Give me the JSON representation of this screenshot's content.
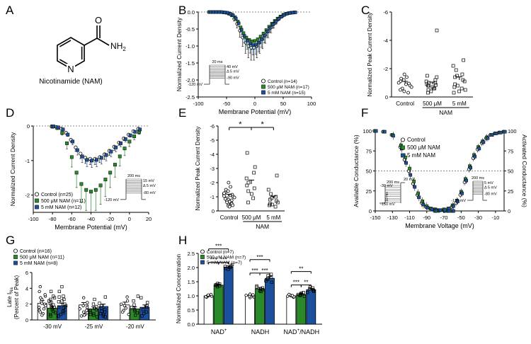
{
  "colors": {
    "control": "#ffffff",
    "nam500": "#2a8a2a",
    "nam5": "#1c4f9c",
    "axis": "#000000",
    "proto": "#555555"
  },
  "panel_labels": [
    "A",
    "B",
    "C",
    "D",
    "E",
    "F",
    "G",
    "H"
  ],
  "panelA": {
    "caption": "Nicotinamide (NAM)",
    "atom_O": "O",
    "atom_N": "N",
    "atom_NH2": "NH",
    "atom_sub2": "2"
  },
  "chart_data": [
    {
      "id": "B",
      "type": "line",
      "xlabel": "Membrane Potential (mV)",
      "ylabel": "Normalized Current Density",
      "xlim": [
        -100,
        100
      ],
      "ylim": [
        -2.5,
        0
      ],
      "xticks": [
        "-100",
        "-50",
        "0",
        "50",
        "100"
      ],
      "yticks": [
        "0.0",
        "-0.5",
        "-1.0",
        "-1.5",
        "-2.0",
        "-2.5"
      ],
      "x": [
        -80,
        -75,
        -70,
        -65,
        -60,
        -55,
        -50,
        -45,
        -40,
        -35,
        -30,
        -25,
        -20,
        -15,
        -10,
        -5,
        0,
        5,
        10,
        15,
        20,
        25,
        30,
        35,
        40,
        45,
        50,
        55,
        60,
        65,
        70
      ],
      "series": [
        {
          "name": "Control (n=14)",
          "values": [
            0,
            0,
            0,
            0,
            0,
            -0.01,
            -0.02,
            -0.05,
            -0.1,
            -0.2,
            -0.35,
            -0.55,
            -0.75,
            -0.9,
            -1.0,
            -1.05,
            -1.05,
            -1.0,
            -0.9,
            -0.8,
            -0.68,
            -0.56,
            -0.45,
            -0.35,
            -0.26,
            -0.18,
            -0.12,
            -0.07,
            -0.04,
            -0.02,
            -0.01
          ]
        },
        {
          "name": "500 μM NAM (n=17)",
          "values": [
            0,
            0,
            0,
            0,
            0,
            -0.01,
            -0.02,
            -0.04,
            -0.08,
            -0.15,
            -0.28,
            -0.45,
            -0.62,
            -0.75,
            -0.82,
            -0.86,
            -0.85,
            -0.8,
            -0.72,
            -0.63,
            -0.53,
            -0.43,
            -0.34,
            -0.26,
            -0.19,
            -0.13,
            -0.08,
            -0.05,
            -0.03,
            -0.02,
            -0.01
          ]
        },
        {
          "name": "5 mM NAM (n=15)",
          "values": [
            0,
            0,
            0,
            0,
            0,
            -0.01,
            -0.02,
            -0.05,
            -0.1,
            -0.19,
            -0.33,
            -0.52,
            -0.7,
            -0.84,
            -0.93,
            -0.97,
            -0.96,
            -0.9,
            -0.8,
            -0.7,
            -0.58,
            -0.47,
            -0.37,
            -0.28,
            -0.2,
            -0.14,
            -0.09,
            -0.05,
            -0.03,
            -0.02,
            -0.01
          ]
        }
      ],
      "protocol": {
        "duration": "20 ms",
        "top": "40 mV",
        "step": "Δ 5 mV",
        "bottom": "-90 mV",
        "hold": "-120 mV"
      },
      "legend": "bottom-right"
    },
    {
      "id": "C",
      "type": "bar",
      "ylabel": "Normalized Peak Current  Density",
      "categories": [
        "Control",
        "500 μM",
        "5 mM"
      ],
      "group_label": "NAM",
      "values": [
        -0.95,
        -0.9,
        -1.2
      ],
      "errors": [
        0.15,
        0.15,
        0.22
      ],
      "ylim": [
        -6,
        0
      ],
      "yticks": [
        "0",
        "-2",
        "-4",
        "-6"
      ],
      "points": [
        [
          -1.6,
          -1.4,
          -1.3,
          -1.2,
          -1.1,
          -1.0,
          -0.95,
          -0.9,
          -0.8,
          -0.7,
          -0.6,
          -0.5,
          -0.4,
          -0.3
        ],
        [
          -1.5,
          -1.4,
          -1.2,
          -1.1,
          -1.0,
          -0.9,
          -0.85,
          -0.8,
          -0.7,
          -0.6,
          -0.5,
          -0.4,
          -0.3,
          -0.6,
          -0.8,
          -1.0,
          -4.7
        ],
        [
          -2.6,
          -2.2,
          -1.9,
          -1.6,
          -1.5,
          -1.4,
          -1.2,
          -1.1,
          -0.9,
          -0.8,
          -0.7,
          -0.6,
          -0.5,
          -0.4,
          -0.3
        ]
      ]
    },
    {
      "id": "D",
      "type": "line",
      "xlabel": "Membrane Potential (mV)",
      "ylabel": "Normalized Current Density",
      "xlim": [
        -100,
        20
      ],
      "ylim": [
        -2.5,
        0
      ],
      "xticks": [
        "-100",
        "-80",
        "-60",
        "-40",
        "-20",
        "0",
        "20"
      ],
      "yticks": [
        "0",
        "-1",
        "-2"
      ],
      "x": [
        -80,
        -75,
        -70,
        -65,
        -60,
        -55,
        -50,
        -45,
        -40,
        -35,
        -30,
        -25,
        -20,
        -15,
        -10,
        -5,
        0,
        5,
        10
      ],
      "series": [
        {
          "name": "Control (n=25)",
          "values": [
            -0.01,
            -0.03,
            -0.08,
            -0.2,
            -0.4,
            -0.62,
            -0.8,
            -0.92,
            -0.95,
            -0.95,
            -0.9,
            -0.82,
            -0.72,
            -0.6,
            -0.48,
            -0.36,
            -0.25,
            -0.15,
            -0.08
          ]
        },
        {
          "name": "500 μM NAM (n=11)",
          "values": [
            -0.02,
            -0.06,
            -0.2,
            -0.5,
            -0.9,
            -1.35,
            -1.68,
            -1.85,
            -1.9,
            -1.85,
            -1.72,
            -1.55,
            -1.35,
            -1.12,
            -0.88,
            -0.65,
            -0.45,
            -0.3,
            -0.18
          ]
        },
        {
          "name": "5 mM NAM (n=12)",
          "values": [
            -0.01,
            -0.04,
            -0.1,
            -0.25,
            -0.45,
            -0.7,
            -0.88,
            -0.98,
            -1.0,
            -0.98,
            -0.92,
            -0.84,
            -0.74,
            -0.62,
            -0.5,
            -0.38,
            -0.27,
            -0.17,
            -0.1
          ]
        }
      ],
      "protocol": {
        "duration": "200 ms",
        "top": "15 mV",
        "step": "Δ 5 mV",
        "bottom": "-80 mV",
        "hold": "-120 mV"
      },
      "legend": "bottom-left"
    },
    {
      "id": "E",
      "type": "bar",
      "ylabel": "Normalized Peak Current  Density",
      "categories": [
        "Control",
        "500 μM",
        "5 mM"
      ],
      "group_label": "NAM",
      "values": [
        -1.05,
        -1.9,
        -0.9
      ],
      "errors": [
        0.12,
        0.28,
        0.15
      ],
      "ylim": [
        -6,
        0
      ],
      "yticks": [
        "0",
        "-1",
        "-2",
        "-3",
        "-4",
        "-5",
        "-6"
      ],
      "points": [
        [
          -2.0,
          -1.7,
          -1.5,
          -1.4,
          -1.3,
          -1.2,
          -1.15,
          -1.1,
          -1.0,
          -0.95,
          -0.9,
          -0.85,
          -0.8,
          -0.75,
          -0.7,
          -0.65,
          -0.6,
          -0.55,
          -0.5,
          -0.45,
          -0.4,
          -0.35,
          -0.3,
          -1.25,
          -1.05
        ],
        [
          -4.1,
          -3.1,
          -2.7,
          -2.3,
          -2.0,
          -1.8,
          -1.6,
          -1.4,
          -1.2,
          -0.9,
          -0.6
        ],
        [
          -2.5,
          -1.5,
          -1.2,
          -1.0,
          -0.9,
          -0.8,
          -0.7,
          -0.6,
          -0.5,
          -0.45,
          -0.4,
          -0.3
        ]
      ],
      "significance": [
        [
          "Control",
          "500 μM",
          "*"
        ],
        [
          "500 μM",
          "5 mM",
          "*"
        ]
      ]
    },
    {
      "id": "F",
      "type": "line",
      "xlabel": "Membrane Voltage (mV)",
      "ylabel": "Available Conductance (%)",
      "ylabel_right": "Activated Conductance (%)",
      "xlim": [
        -150,
        0
      ],
      "ylim": [
        0,
        100
      ],
      "xticks": [
        "-150",
        "-130",
        "-110",
        "-90",
        "-70",
        "-50",
        "-30",
        "-10"
      ],
      "yticks": [
        "0",
        "25",
        "50",
        "75",
        "100"
      ],
      "x_inact": [
        -150,
        -140,
        -130,
        -120,
        -115,
        -110,
        -105,
        -100,
        -95,
        -90,
        -85,
        -80,
        -75,
        -70,
        -65,
        -60
      ],
      "x_act": [
        -80,
        -75,
        -70,
        -65,
        -60,
        -55,
        -50,
        -45,
        -40,
        -35,
        -30,
        -25,
        -20,
        -15,
        -10,
        -5,
        0
      ],
      "series": [
        {
          "name": "Control",
          "inact": [
            100,
            99,
            95,
            80,
            64,
            50,
            34,
            20,
            10,
            5,
            3,
            2,
            1,
            1,
            0,
            0
          ],
          "act": [
            0,
            0,
            1,
            2,
            5,
            10,
            20,
            36,
            52,
            66,
            77,
            85,
            91,
            95,
            97,
            98,
            99
          ]
        },
        {
          "name": "500 μM NAM",
          "inact": [
            100,
            99,
            95,
            82,
            67,
            53,
            37,
            22,
            12,
            6,
            3,
            2,
            1,
            1,
            0,
            0
          ],
          "act": [
            0,
            1,
            2,
            3,
            7,
            13,
            24,
            40,
            56,
            70,
            80,
            87,
            92,
            95,
            97,
            98,
            99
          ]
        },
        {
          "name": "5 mM NAM",
          "inact": [
            100,
            99,
            94,
            78,
            60,
            45,
            30,
            17,
            8,
            4,
            2,
            1,
            1,
            0,
            0,
            0
          ],
          "act": [
            0,
            1,
            1,
            3,
            6,
            12,
            22,
            38,
            54,
            68,
            78,
            86,
            91,
            95,
            97,
            98,
            99
          ]
        }
      ],
      "protocol_left": {
        "duration": "200 ms",
        "top": "-30 mV",
        "step": "Δ 5 mV",
        "bottom": "-150 mV",
        "after": "20 mV",
        "width": "10 ms"
      },
      "protocol_right": {
        "duration": "200 ms",
        "top": "5 mV",
        "step": "Δ 5 mV",
        "bottom": "-80 mV",
        "hold": "-120 mV"
      }
    },
    {
      "id": "G",
      "type": "bar",
      "ylabel": "Late Iₙₐ (Percent of Peak)",
      "ylabel_main": "Late I",
      "ylabel_sub": "Na",
      "ylabel_paren": "(Percent of Peak)",
      "categories": [
        "-30 mV",
        "-25 mV",
        "-20 mV"
      ],
      "ylim": [
        0,
        6
      ],
      "yticks": [
        "0",
        "2",
        "4",
        "6"
      ],
      "series": [
        {
          "name": "Control (n=16)",
          "values": [
            2.1,
            1.9,
            1.9
          ],
          "errors": [
            0.35,
            0.3,
            0.35
          ]
        },
        {
          "name": "500 μM NAM (n=11)",
          "values": [
            1.5,
            1.4,
            1.4
          ],
          "errors": [
            0.25,
            0.25,
            0.25
          ]
        },
        {
          "name": "5 mM NAM (n=8)",
          "values": [
            1.8,
            1.7,
            1.6
          ],
          "errors": [
            0.3,
            0.3,
            0.3
          ]
        }
      ],
      "points": [
        [
          [
            4.2,
            3.6,
            3.0,
            2.6,
            2.3,
            2.1,
            2.0,
            1.8,
            1.6,
            1.4,
            1.2,
            1.0,
            0.8,
            0.6,
            2.8,
            3.2
          ],
          [
            3.6,
            3.0,
            2.6,
            2.4,
            2.1,
            1.9,
            1.7,
            1.5,
            1.3,
            1.1,
            0.9,
            0.7,
            0.5,
            2.8,
            2.2,
            1.6
          ],
          [
            4.2,
            3.6,
            3.0,
            2.6,
            2.3,
            2.0,
            1.8,
            1.6,
            1.3,
            1.1,
            0.9,
            0.7,
            0.5,
            2.9,
            2.4,
            1.5
          ]
        ],
        [
          [
            2.8,
            2.2,
            1.8,
            1.6,
            1.4,
            1.2,
            1.0,
            0.9,
            0.7,
            0.6,
            0.5
          ],
          [
            2.6,
            2.0,
            1.7,
            1.5,
            1.3,
            1.2,
            1.0,
            0.8,
            0.7,
            0.6,
            0.4
          ],
          [
            2.9,
            2.1,
            1.8,
            1.5,
            1.3,
            1.1,
            1.0,
            0.8,
            0.7,
            0.5,
            0.4
          ]
        ],
        [
          [
            2.9,
            2.4,
            2.0,
            1.8,
            1.5,
            1.2,
            1.0,
            0.7
          ],
          [
            3.0,
            2.4,
            1.9,
            1.6,
            1.3,
            1.1,
            0.9,
            0.6
          ],
          [
            2.8,
            2.2,
            1.8,
            1.6,
            1.3,
            1.0,
            0.8,
            0.5
          ]
        ]
      ]
    },
    {
      "id": "H",
      "type": "bar",
      "ylabel": "Normalized  Concentration",
      "categories": [
        "NAD⁺",
        "NADH",
        "NAD⁺/NADH"
      ],
      "category_main": [
        "NAD",
        "NADH",
        "NAD"
      ],
      "category_sup": [
        "+",
        "",
        "+"
      ],
      "category_tail": [
        "",
        "",
        "/NADH"
      ],
      "ylim": [
        0,
        2.5
      ],
      "yticks": [
        "0.0",
        "0.5",
        "1.0",
        "1.5",
        "2.0",
        "2.5"
      ],
      "series": [
        {
          "name": "Control (n=7)",
          "values": [
            1.0,
            1.0,
            1.0
          ],
          "errors": [
            0.03,
            0.03,
            0.03
          ]
        },
        {
          "name": "500 μM NAM (n=7)",
          "values": [
            1.38,
            1.25,
            1.05
          ],
          "errors": [
            0.03,
            0.05,
            0.04
          ]
        },
        {
          "name": "5 mM NAM (n=7)",
          "values": [
            2.02,
            1.62,
            1.22
          ],
          "errors": [
            0.04,
            0.06,
            0.04
          ]
        }
      ],
      "points": [
        [
          [
            0.95,
            0.97,
            0.99,
            1.0,
            1.01,
            1.03,
            1.05
          ],
          [
            1.32,
            1.35,
            1.37,
            1.38,
            1.4,
            1.42,
            1.44
          ],
          [
            1.94,
            1.97,
            2.0,
            2.02,
            2.04,
            2.06,
            2.1
          ]
        ],
        [
          [
            0.94,
            0.96,
            0.99,
            1.0,
            1.02,
            1.04,
            1.06
          ],
          [
            1.15,
            1.18,
            1.22,
            1.25,
            1.28,
            1.31,
            1.35
          ],
          [
            1.48,
            1.53,
            1.58,
            1.62,
            1.66,
            1.71,
            1.76
          ]
        ],
        [
          [
            0.95,
            0.97,
            0.99,
            1.0,
            1.01,
            1.03,
            1.05
          ],
          [
            0.98,
            1.01,
            1.03,
            1.05,
            1.07,
            1.1,
            1.12
          ],
          [
            1.12,
            1.16,
            1.19,
            1.22,
            1.25,
            1.28,
            1.32
          ]
        ]
      ],
      "significance": [
        "***",
        "***",
        "***",
        "***",
        "***",
        "***",
        "***",
        "**",
        "**"
      ]
    }
  ]
}
